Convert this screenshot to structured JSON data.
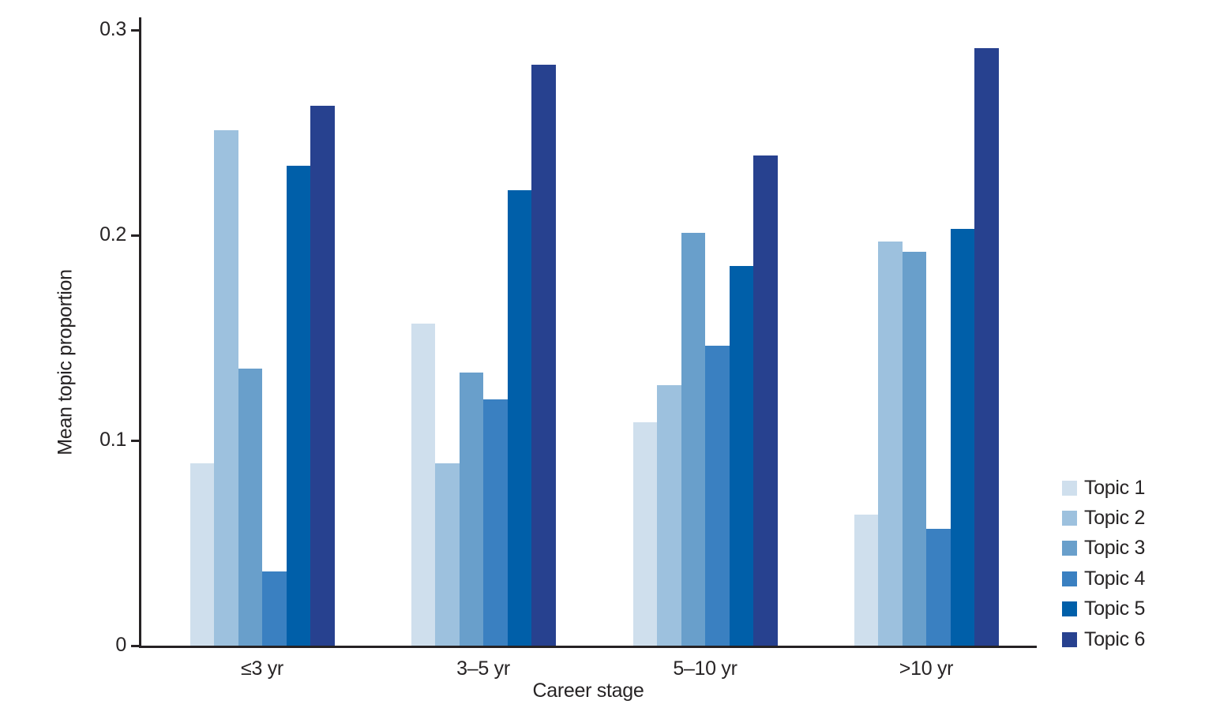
{
  "chart_data": {
    "type": "bar",
    "title": "",
    "categories": [
      "≤3 yr",
      "3–5 yr",
      "5–10 yr",
      ">10 yr"
    ],
    "series": [
      {
        "name": "Topic 1",
        "color": "#cfdfed",
        "values": [
          0.089,
          0.157,
          0.109,
          0.064
        ]
      },
      {
        "name": "Topic 2",
        "color": "#9dc1de",
        "values": [
          0.251,
          0.089,
          0.127,
          0.197
        ]
      },
      {
        "name": "Topic 3",
        "color": "#699fcb",
        "values": [
          0.135,
          0.133,
          0.201,
          0.192
        ]
      },
      {
        "name": "Topic 4",
        "color": "#3a80c1",
        "values": [
          0.036,
          0.12,
          0.146,
          0.057
        ]
      },
      {
        "name": "Topic 5",
        "color": "#005fa9",
        "values": [
          0.234,
          0.222,
          0.185,
          0.203
        ]
      },
      {
        "name": "Topic 6",
        "color": "#27418f",
        "values": [
          0.263,
          0.283,
          0.239,
          0.291
        ]
      }
    ],
    "xlabel": "Career stage",
    "ylabel": "Mean topic proportion",
    "yticks": [
      "0",
      "0.1",
      "0.2",
      "0.3"
    ],
    "ylim": [
      0,
      0.3
    ],
    "grid": false,
    "legend_position": "right",
    "axis_color": "#262224",
    "text_color": "#272425",
    "background_color": "#ffffff"
  }
}
